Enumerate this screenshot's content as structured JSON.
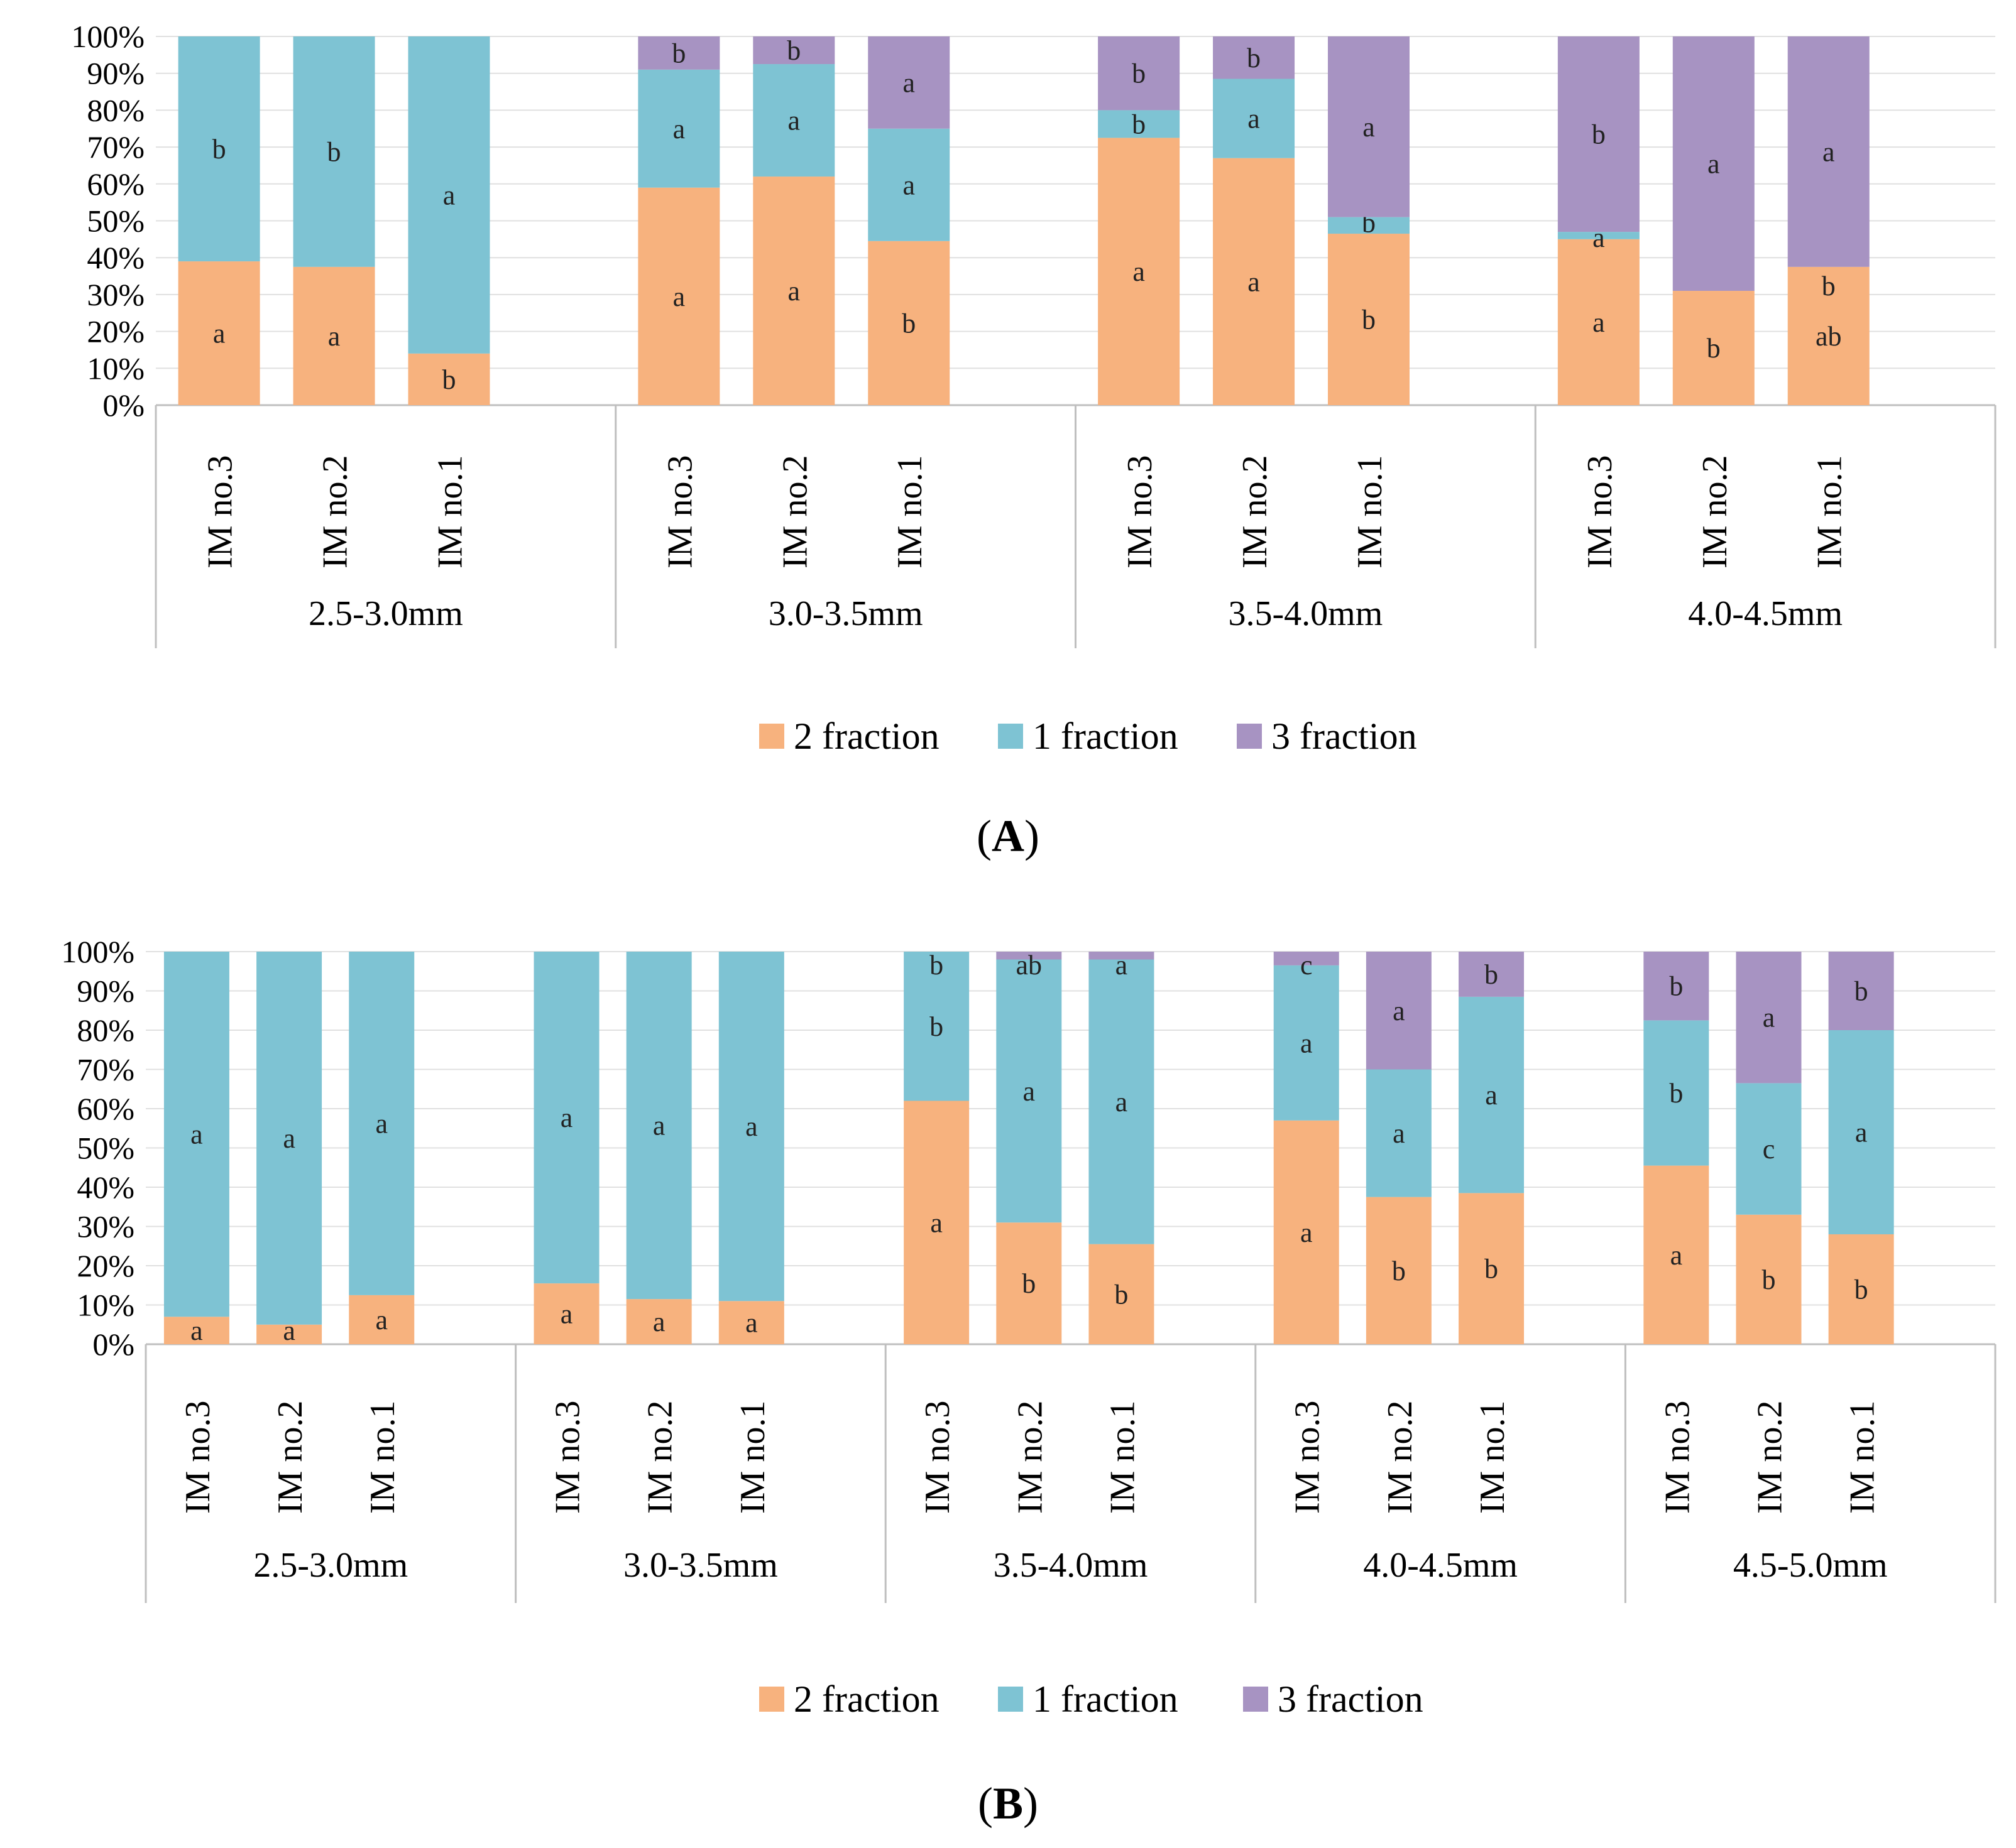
{
  "legend_labels": [
    "2 fraction",
    "1 fraction",
    "3 fraction"
  ],
  "colors": {
    "2 fraction": "#F7B27E",
    "1 fraction": "#7EC3D3",
    "3 fraction": "#A793C2",
    "axis": "#BFBFBF",
    "grid": "#E0E0E0"
  },
  "chart_data": [
    {
      "type": "bar",
      "stacked": true,
      "panel_label": "A",
      "ylim": [
        0,
        100
      ],
      "ytick_labels": [
        "0%",
        "10%",
        "20%",
        "30%",
        "40%",
        "50%",
        "60%",
        "70%",
        "80%",
        "90%",
        "100%"
      ],
      "groups": [
        {
          "label": "2.5-3.0mm",
          "bars": [
            {
              "label": "IM no.3",
              "values": [
                39,
                61,
                0
              ],
              "letters": [
                "a",
                "b",
                ""
              ]
            },
            {
              "label": "IM no.2",
              "values": [
                37.5,
                62.5,
                0
              ],
              "letters": [
                "a",
                "b",
                ""
              ]
            },
            {
              "label": "IM no.1",
              "values": [
                14,
                86,
                0
              ],
              "letters": [
                "b",
                "a",
                ""
              ]
            }
          ]
        },
        {
          "label": "3.0-3.5mm",
          "bars": [
            {
              "label": "IM no.3",
              "values": [
                59,
                32,
                9
              ],
              "letters": [
                "a",
                "a",
                "b"
              ]
            },
            {
              "label": "IM no.2",
              "values": [
                62,
                30.5,
                7.5
              ],
              "letters": [
                "a",
                "a",
                "b"
              ]
            },
            {
              "label": "IM no.1",
              "values": [
                44.5,
                30.5,
                25
              ],
              "letters": [
                "b",
                "a",
                "a"
              ]
            }
          ]
        },
        {
          "label": "3.5-4.0mm",
          "bars": [
            {
              "label": "IM no.3",
              "values": [
                72.5,
                7.5,
                20
              ],
              "letters": [
                "a",
                "b",
                "b"
              ]
            },
            {
              "label": "IM no.2",
              "values": [
                67,
                21.5,
                11.5
              ],
              "letters": [
                "a",
                "a",
                "b"
              ]
            },
            {
              "label": "IM no.1",
              "values": [
                46.5,
                4.5,
                49
              ],
              "letters": [
                "b",
                "b",
                "a"
              ]
            }
          ]
        },
        {
          "label": "4.0-4.5mm",
          "bars": [
            {
              "label": "IM no.3",
              "values": [
                45,
                2,
                53
              ],
              "letters": [
                "a",
                "a",
                "b"
              ]
            },
            {
              "label": "IM no.2",
              "values": [
                31,
                0,
                69
              ],
              "letters": [
                "b",
                "",
                "a"
              ]
            },
            {
              "label": "IM no.1",
              "values": [
                37.5,
                0,
                62.5
              ],
              "letters": [
                "ab",
                "",
                "a"
              ],
              "letter_extra": "b"
            }
          ]
        }
      ]
    },
    {
      "type": "bar",
      "stacked": true,
      "panel_label": "B",
      "ylim": [
        0,
        100
      ],
      "ytick_labels": [
        "0%",
        "10%",
        "20%",
        "30%",
        "40%",
        "50%",
        "60%",
        "70%",
        "80%",
        "90%",
        "100%"
      ],
      "groups": [
        {
          "label": "2.5-3.0mm",
          "bars": [
            {
              "label": "IM no.3",
              "values": [
                7,
                93,
                0
              ],
              "letters": [
                "a",
                "a",
                ""
              ]
            },
            {
              "label": "IM no.2",
              "values": [
                5,
                95,
                0
              ],
              "letters": [
                "a",
                "a",
                ""
              ]
            },
            {
              "label": "IM no.1",
              "values": [
                12.5,
                87.5,
                0
              ],
              "letters": [
                "a",
                "a",
                ""
              ]
            }
          ]
        },
        {
          "label": "3.0-3.5mm",
          "bars": [
            {
              "label": "IM no.3",
              "values": [
                15.5,
                84.5,
                0
              ],
              "letters": [
                "a",
                "a",
                ""
              ]
            },
            {
              "label": "IM no.2",
              "values": [
                11.5,
                88.5,
                0
              ],
              "letters": [
                "a",
                "a",
                ""
              ]
            },
            {
              "label": "IM no.1",
              "values": [
                11,
                89,
                0
              ],
              "letters": [
                "a",
                "a",
                ""
              ]
            }
          ]
        },
        {
          "label": "3.5-4.0mm",
          "bars": [
            {
              "label": "IM no.3",
              "values": [
                62,
                38,
                0
              ],
              "letters": [
                "a",
                "b",
                "b"
              ]
            },
            {
              "label": "IM no.2",
              "values": [
                31,
                67,
                2
              ],
              "letters": [
                "b",
                "a",
                "ab"
              ]
            },
            {
              "label": "IM no.1",
              "values": [
                25.5,
                72.5,
                2
              ],
              "letters": [
                "b",
                "a",
                "a"
              ]
            }
          ]
        },
        {
          "label": "4.0-4.5mm",
          "bars": [
            {
              "label": "IM no.3",
              "values": [
                57,
                39.5,
                3.5
              ],
              "letters": [
                "a",
                "a",
                "c"
              ]
            },
            {
              "label": "IM no.2",
              "values": [
                37.5,
                32.5,
                30
              ],
              "letters": [
                "b",
                "a",
                "a"
              ]
            },
            {
              "label": "IM no.1",
              "values": [
                38.5,
                50,
                11.5
              ],
              "letters": [
                "b",
                "a",
                "b"
              ]
            }
          ]
        },
        {
          "label": "4.5-5.0mm",
          "bars": [
            {
              "label": "IM no.3",
              "values": [
                45.5,
                37,
                17.5
              ],
              "letters": [
                "a",
                "b",
                "b"
              ]
            },
            {
              "label": "IM no.2",
              "values": [
                33,
                33.5,
                33.5
              ],
              "letters": [
                "b",
                "c",
                "a"
              ]
            },
            {
              "label": "IM no.1",
              "values": [
                28,
                52,
                20
              ],
              "letters": [
                "b",
                "a",
                "b"
              ]
            }
          ]
        }
      ]
    }
  ]
}
